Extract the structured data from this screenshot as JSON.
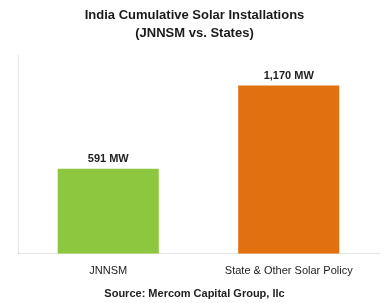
{
  "chart_data": {
    "type": "bar",
    "title": "India Cumulative Solar Installations",
    "subtitle": "(JNNSM vs. States)",
    "categories": [
      "JNNSM",
      "State & Other Solar Policy"
    ],
    "values": [
      591,
      1170
    ],
    "value_labels": [
      "591 MW",
      "1,170 MW"
    ],
    "data_labels": true,
    "colors": [
      "#8dc63f",
      "#e07010"
    ],
    "ylim": [
      0,
      1380
    ],
    "tick_labels": "x",
    "grid": false,
    "annotation": "Source: Mercom Capital Group, llc"
  }
}
